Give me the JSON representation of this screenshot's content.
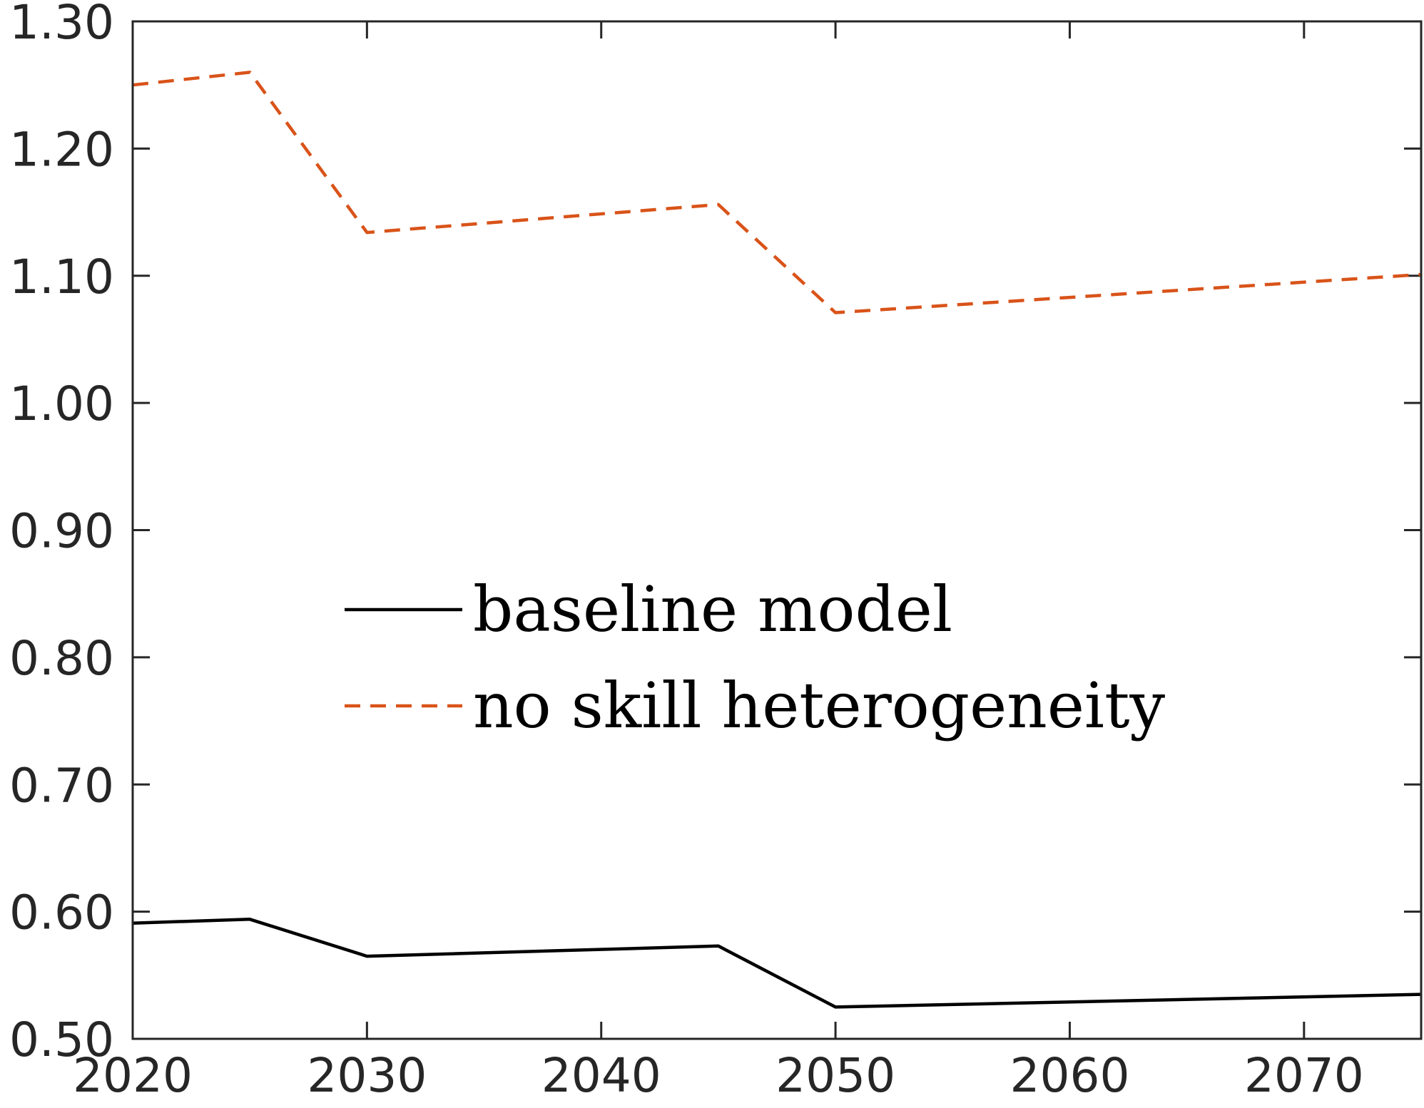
{
  "chart_data": {
    "type": "line",
    "title": "",
    "xlabel": "",
    "ylabel": "",
    "xlim": [
      2020,
      2075
    ],
    "ylim": [
      0.5,
      1.3
    ],
    "xticks": [
      2020,
      2030,
      2040,
      2050,
      2060,
      2070
    ],
    "xtick_labels": [
      "2020",
      "2030",
      "2040",
      "2050",
      "2060",
      "2070"
    ],
    "yticks": [
      0.5,
      0.6,
      0.7,
      0.8,
      0.9,
      1.0,
      1.1,
      1.2,
      1.3
    ],
    "ytick_labels": [
      "0.50",
      "0.60",
      "0.70",
      "0.80",
      "0.90",
      "1.00",
      "1.10",
      "1.20",
      "1.30"
    ],
    "grid": false,
    "legend_position": "center-left",
    "series": [
      {
        "name": "baseline model",
        "color": "#000000",
        "style": "solid",
        "x": [
          2020,
          2025,
          2030,
          2045,
          2050,
          2075
        ],
        "y": [
          0.591,
          0.594,
          0.565,
          0.573,
          0.525,
          0.535
        ]
      },
      {
        "name": "no skill heterogeneity",
        "color": "#D95319",
        "style": "dashed",
        "x": [
          2020,
          2025,
          2030,
          2045,
          2050,
          2075
        ],
        "y": [
          1.25,
          1.26,
          1.134,
          1.156,
          1.071,
          1.101
        ]
      }
    ]
  }
}
